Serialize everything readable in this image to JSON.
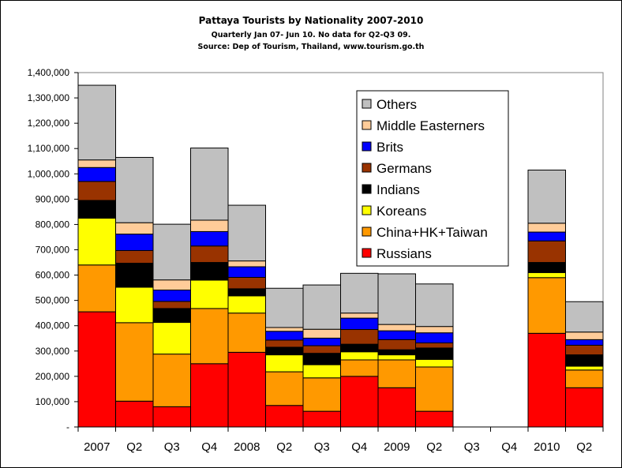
{
  "chart_data": {
    "type": "bar",
    "stacked": true,
    "title": "Pattaya Tourists by Nationality 2007-2010",
    "subtitle": "Quarterly Jan 07- Jun 10. No data for Q2-Q3 09.",
    "source": "Source:  Dep of Tourism, Thailand, www.tourism.go.th",
    "categories": [
      "2007",
      "Q2",
      "Q3",
      "Q4",
      "2008",
      "Q2",
      "Q3",
      "Q4",
      "2009",
      "Q2",
      "Q3",
      "Q4",
      "2010",
      "Q2"
    ],
    "ylim": [
      0,
      1400000
    ],
    "yticks": [
      {
        "value": 0,
        "label": "-"
      },
      {
        "value": 100000,
        "label": "100,000"
      },
      {
        "value": 200000,
        "label": "200,000"
      },
      {
        "value": 300000,
        "label": "300,000"
      },
      {
        "value": 400000,
        "label": "400,000"
      },
      {
        "value": 500000,
        "label": "500,000"
      },
      {
        "value": 600000,
        "label": "600,000"
      },
      {
        "value": 700000,
        "label": "700,000"
      },
      {
        "value": 800000,
        "label": "800,000"
      },
      {
        "value": 900000,
        "label": "900,000"
      },
      {
        "value": 1000000,
        "label": "1,000,000"
      },
      {
        "value": 1100000,
        "label": "1,100,000"
      },
      {
        "value": 1200000,
        "label": "1,200,000"
      },
      {
        "value": 1300000,
        "label": "1,300,000"
      },
      {
        "value": 1400000,
        "label": "1,400,000"
      }
    ],
    "series": [
      {
        "name": "Russians",
        "color": "#ff0000",
        "values": [
          455000,
          102000,
          80000,
          250000,
          295000,
          85000,
          62000,
          200000,
          155000,
          62000,
          0,
          0,
          370000,
          155000
        ]
      },
      {
        "name": "China+HK+Taiwan",
        "color": "#ff9900",
        "values": [
          185000,
          310000,
          208000,
          218000,
          155000,
          133000,
          132000,
          65000,
          110000,
          175000,
          0,
          0,
          220000,
          70000
        ]
      },
      {
        "name": "Koreans",
        "color": "#ffff00",
        "values": [
          185000,
          140000,
          125000,
          112000,
          68000,
          67000,
          52000,
          32000,
          20000,
          30000,
          0,
          0,
          20000,
          15000
        ]
      },
      {
        "name": "Indians",
        "color": "#000000",
        "values": [
          70000,
          95000,
          55000,
          70000,
          28000,
          30000,
          45000,
          30000,
          20000,
          45000,
          0,
          0,
          40000,
          45000
        ]
      },
      {
        "name": "Germans",
        "color": "#993300",
        "values": [
          75000,
          50000,
          28000,
          65000,
          45000,
          28000,
          30000,
          58000,
          40000,
          20000,
          0,
          0,
          85000,
          38000
        ]
      },
      {
        "name": "Brits",
        "color": "#0000ff",
        "values": [
          55000,
          65000,
          45000,
          57000,
          42000,
          35000,
          30000,
          45000,
          35000,
          40000,
          0,
          0,
          35000,
          22000
        ]
      },
      {
        "name": "Middle Easterners",
        "color": "#ffcc99",
        "values": [
          30000,
          45000,
          40000,
          45000,
          23000,
          15000,
          35000,
          20000,
          25000,
          25000,
          0,
          0,
          35000,
          30000
        ]
      },
      {
        "name": "Others",
        "color": "#c0c0c0",
        "values": [
          295000,
          258000,
          220000,
          285000,
          220000,
          155000,
          175000,
          157000,
          200000,
          168000,
          0,
          0,
          210000,
          120000
        ]
      }
    ],
    "legend_order": [
      "Others",
      "Middle Easterners",
      "Brits",
      "Germans",
      "Indians",
      "Koreans",
      "China+HK+Taiwan",
      "Russians"
    ],
    "legend_position": "top-right",
    "plot_background": "#ffffff",
    "grid": false
  }
}
